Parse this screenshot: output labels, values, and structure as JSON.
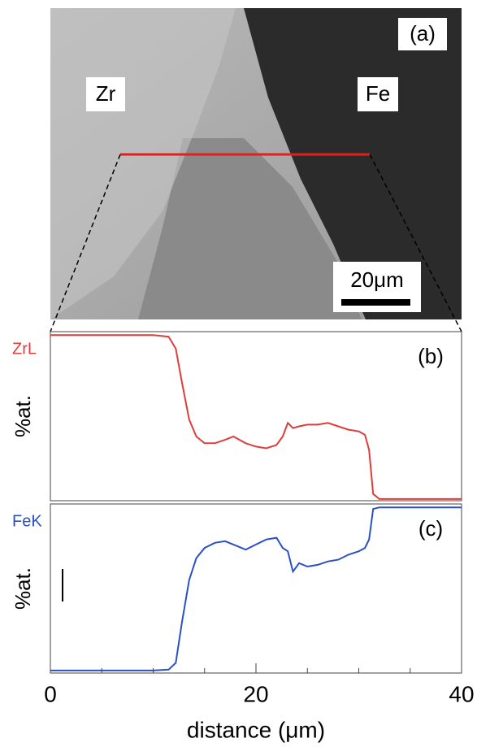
{
  "image": {
    "label": "(a)",
    "regions": [
      "Zr",
      "Fe"
    ],
    "scale_bar": "20μm"
  },
  "chart_data": [
    {
      "type": "line",
      "panel_label": "(b)",
      "ylabel": "%at.",
      "x": [
        0,
        5,
        10,
        11.5,
        12.2,
        12.8,
        13.5,
        14.2,
        15,
        16,
        17,
        17.8,
        19,
        20,
        21,
        22,
        22.6,
        23.1,
        23.6,
        24.2,
        25,
        26,
        27,
        28,
        29,
        30,
        30.6,
        31,
        31.4,
        32,
        36,
        40
      ],
      "series": [
        {
          "name": "ZrL",
          "color": "#e03c3c",
          "values": [
            98,
            98,
            98,
            97,
            90,
            70,
            48,
            38,
            34,
            34,
            36,
            38,
            34,
            32,
            31,
            33,
            38,
            46,
            43,
            44,
            45,
            45,
            46,
            44,
            42,
            41,
            39,
            30,
            4,
            1,
            1,
            1
          ]
        }
      ],
      "xlim": [
        0,
        40
      ],
      "ylim": [
        0,
        100
      ]
    },
    {
      "type": "line",
      "panel_label": "(c)",
      "ylabel": "%at.",
      "xlabel": "distance (μm)",
      "x": [
        0,
        5,
        10,
        11.5,
        12.2,
        12.8,
        13.5,
        14.2,
        15,
        16,
        17,
        17.8,
        19,
        20,
        21,
        22,
        22.6,
        23.1,
        23.6,
        24.2,
        25,
        26,
        27,
        28,
        29,
        30,
        30.6,
        31,
        31.4,
        32,
        36,
        40
      ],
      "series": [
        {
          "name": "FeK",
          "color": "#2b4fc4",
          "values": [
            1.5,
            1.5,
            1.5,
            2,
            6,
            30,
            55,
            68,
            74,
            77,
            78,
            76,
            73,
            76,
            79,
            80,
            74,
            72,
            60,
            65,
            63,
            64,
            66,
            67,
            70,
            72,
            74,
            79,
            97,
            98,
            98,
            98
          ]
        }
      ],
      "xlim": [
        0,
        40
      ],
      "ylim": [
        0,
        100
      ],
      "xticks": [
        0,
        20,
        40
      ],
      "xminorticks": [
        5,
        10,
        15,
        25,
        30,
        35
      ]
    }
  ]
}
